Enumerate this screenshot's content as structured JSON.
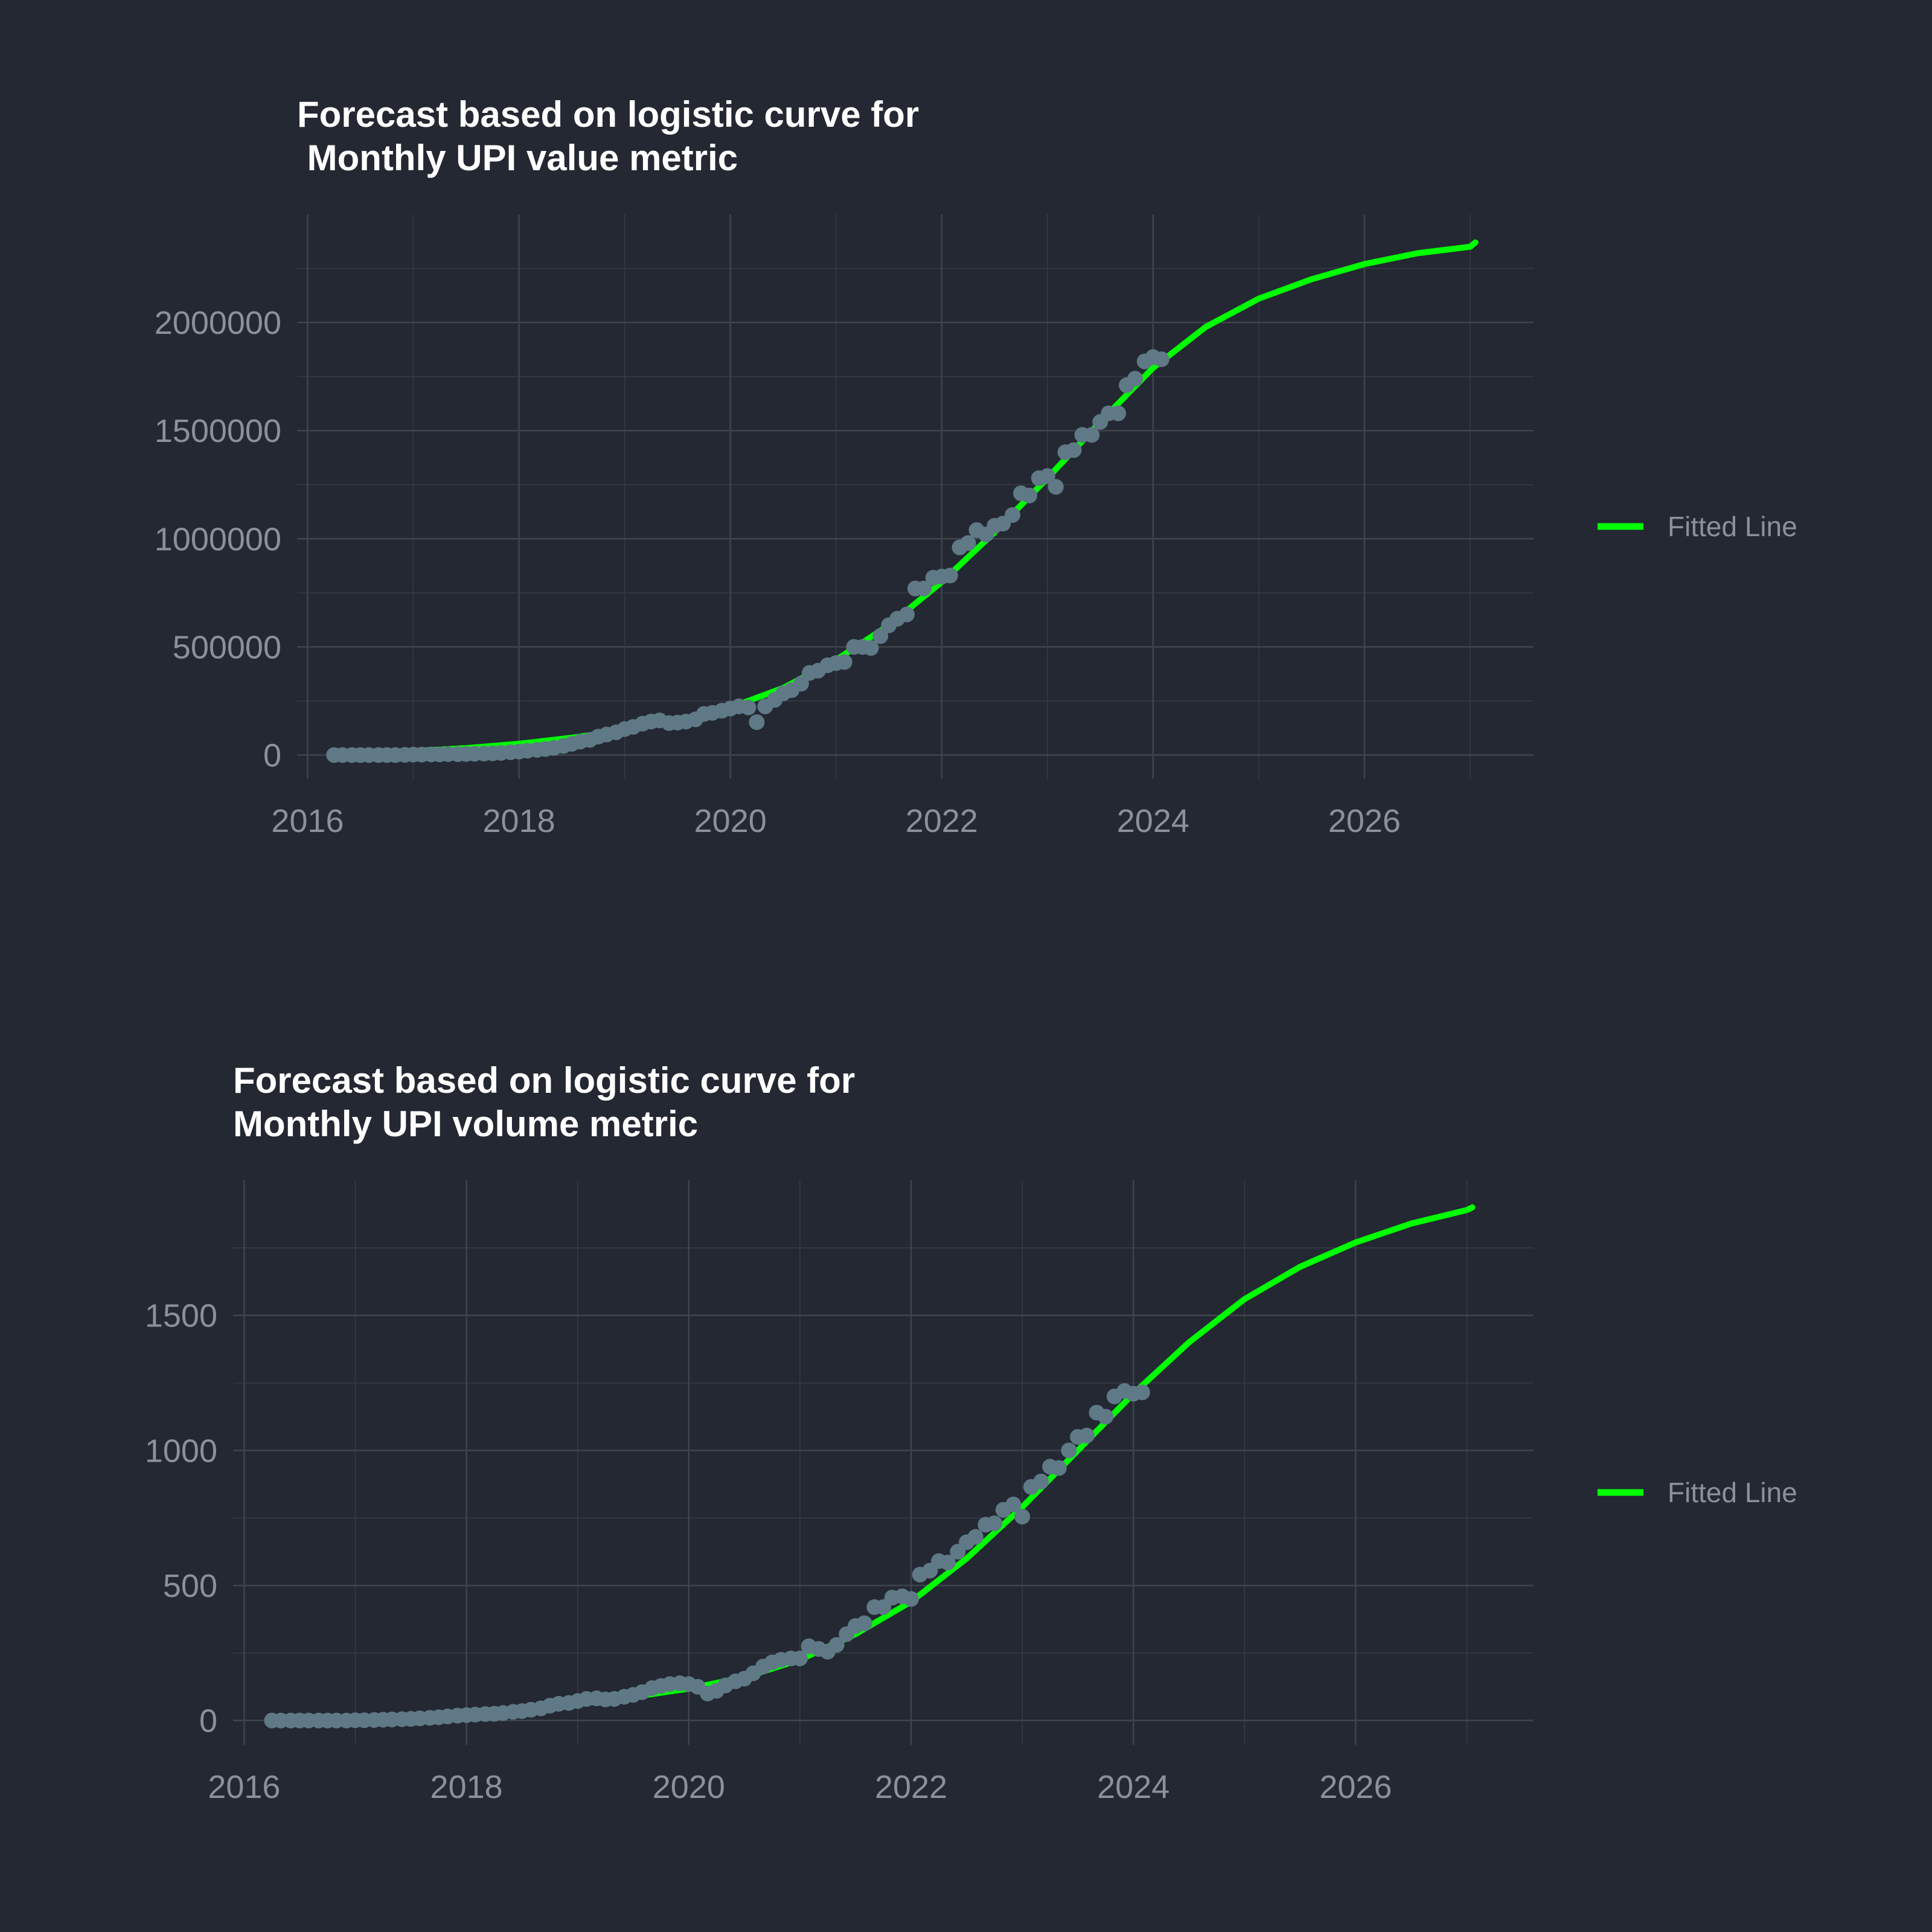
{
  "colors": {
    "background": "#232832",
    "fitted_line": "#00ff00",
    "points": "#5f7a86",
    "grid_major": "#3e434c",
    "grid_minor": "#353a43",
    "text": "#8c9199",
    "title": "#ffffff"
  },
  "chart_data": [
    {
      "type": "scatter",
      "title_lines": [
        "Forecast based on logistic curve for",
        " Monthly UPI value metric"
      ],
      "xlabel": "",
      "ylabel": "",
      "xlim": [
        2015.9,
        2027.6
      ],
      "ylim": [
        -110000,
        2500000
      ],
      "x_ticks": [
        2016,
        2018,
        2020,
        2022,
        2024,
        2026
      ],
      "x_tick_labels": [
        "2016",
        "2018",
        "2020",
        "2022",
        "2024",
        "2026"
      ],
      "y_ticks": [
        0,
        500000,
        1000000,
        1500000,
        2000000
      ],
      "y_tick_labels": [
        "0",
        "500000",
        "1000000",
        "1500000",
        "2000000"
      ],
      "grid": true,
      "legend": {
        "position": "right",
        "entries": [
          "Fitted Line"
        ]
      },
      "fitted_line": {
        "name": "Fitted Line",
        "x": [
          2016.25,
          2016.5,
          2017,
          2017.5,
          2018,
          2018.5,
          2019,
          2019.5,
          2020,
          2020.5,
          2021,
          2021.5,
          2022,
          2022.5,
          2023,
          2023.5,
          2024,
          2024.5,
          2025,
          2025.5,
          2026,
          2026.5,
          2027,
          2027.05
        ],
        "y": [
          5000,
          8000,
          18000,
          32000,
          52000,
          80000,
          115000,
          160000,
          220000,
          310000,
          440000,
          600000,
          800000,
          1030000,
          1280000,
          1540000,
          1790000,
          1980000,
          2110000,
          2200000,
          2270000,
          2320000,
          2350000,
          2370000
        ]
      },
      "points": {
        "x": [
          2016.25,
          2016.33,
          2016.42,
          2016.5,
          2016.58,
          2016.67,
          2016.75,
          2016.83,
          2016.92,
          2017.0,
          2017.08,
          2017.17,
          2017.25,
          2017.33,
          2017.42,
          2017.5,
          2017.58,
          2017.67,
          2017.75,
          2017.83,
          2017.92,
          2018.0,
          2018.08,
          2018.17,
          2018.25,
          2018.33,
          2018.42,
          2018.5,
          2018.58,
          2018.67,
          2018.75,
          2018.83,
          2018.92,
          2019.0,
          2019.08,
          2019.17,
          2019.25,
          2019.33,
          2019.42,
          2019.5,
          2019.58,
          2019.67,
          2019.75,
          2019.83,
          2019.92,
          2020.0,
          2020.08,
          2020.17,
          2020.25,
          2020.33,
          2020.42,
          2020.5,
          2020.58,
          2020.67,
          2020.75,
          2020.83,
          2020.92,
          2021.0,
          2021.08,
          2021.17,
          2021.25,
          2021.33,
          2021.42,
          2021.5,
          2021.58,
          2021.67,
          2021.75,
          2021.83,
          2021.92,
          2022.0,
          2022.08,
          2022.17,
          2022.25,
          2022.33,
          2022.42,
          2022.5,
          2022.58,
          2022.67,
          2022.75,
          2022.83,
          2022.92,
          2023.0,
          2023.08,
          2023.17,
          2023.25,
          2023.33,
          2023.42,
          2023.5,
          2023.58,
          2023.67,
          2023.75,
          2023.83,
          2023.92,
          2024.0,
          2024.08
        ],
        "y": [
          0,
          0,
          0,
          0,
          0,
          0,
          0,
          0,
          1000,
          2000,
          2000,
          3000,
          3000,
          4000,
          4000,
          5000,
          6000,
          7000,
          8000,
          10000,
          13000,
          16000,
          20000,
          24000,
          28000,
          33000,
          42000,
          52000,
          62000,
          70000,
          85000,
          95000,
          105000,
          120000,
          130000,
          145000,
          155000,
          160000,
          148000,
          150000,
          155000,
          165000,
          190000,
          195000,
          205000,
          215000,
          225000,
          220000,
          152000,
          225000,
          255000,
          285000,
          300000,
          330000,
          380000,
          390000,
          415000,
          425000,
          430000,
          500000,
          500000,
          495000,
          550000,
          600000,
          630000,
          650000,
          770000,
          770000,
          820000,
          825000,
          830000,
          960000,
          980000,
          1040000,
          1020000,
          1060000,
          1070000,
          1110000,
          1210000,
          1200000,
          1280000,
          1290000,
          1240000,
          1400000,
          1410000,
          1480000,
          1480000,
          1540000,
          1580000,
          1580000,
          1710000,
          1740000,
          1820000,
          1840000,
          1830000
        ]
      }
    },
    {
      "type": "scatter",
      "title_lines": [
        "Forecast based on logistic curve for",
        "Monthly UPI volume metric"
      ],
      "xlabel": "",
      "ylabel": "",
      "xlim": [
        2015.9,
        2027.6
      ],
      "ylim": [
        -90,
        2000
      ],
      "x_ticks": [
        2016,
        2018,
        2020,
        2022,
        2024,
        2026
      ],
      "x_tick_labels": [
        "2016",
        "2018",
        "2020",
        "2022",
        "2024",
        "2026"
      ],
      "y_ticks": [
        0,
        500,
        1000,
        1500
      ],
      "y_tick_labels": [
        "0",
        "500",
        "1000",
        "1500"
      ],
      "grid": true,
      "legend": {
        "position": "right",
        "entries": [
          "Fitted Line"
        ]
      },
      "fitted_line": {
        "name": "Fitted Line",
        "x": [
          2016.25,
          2016.5,
          2017,
          2017.5,
          2018,
          2018.5,
          2019,
          2019.5,
          2020,
          2020.5,
          2021,
          2021.5,
          2022,
          2022.5,
          2023,
          2023.5,
          2024,
          2024.5,
          2025,
          2025.5,
          2026,
          2026.5,
          2027,
          2027.05
        ],
        "y": [
          3,
          4,
          8,
          14,
          24,
          40,
          62,
          88,
          118,
          160,
          225,
          320,
          440,
          600,
          790,
          1000,
          1210,
          1400,
          1560,
          1680,
          1770,
          1840,
          1890,
          1900
        ]
      },
      "points": {
        "x": [
          2016.25,
          2016.33,
          2016.42,
          2016.5,
          2016.58,
          2016.67,
          2016.75,
          2016.83,
          2016.92,
          2017.0,
          2017.08,
          2017.17,
          2017.25,
          2017.33,
          2017.42,
          2017.5,
          2017.58,
          2017.67,
          2017.75,
          2017.83,
          2017.92,
          2018.0,
          2018.08,
          2018.17,
          2018.25,
          2018.33,
          2018.42,
          2018.5,
          2018.58,
          2018.67,
          2018.75,
          2018.83,
          2018.92,
          2019.0,
          2019.08,
          2019.17,
          2019.25,
          2019.33,
          2019.42,
          2019.5,
          2019.58,
          2019.67,
          2019.75,
          2019.83,
          2019.92,
          2020.0,
          2020.08,
          2020.17,
          2020.25,
          2020.33,
          2020.42,
          2020.5,
          2020.58,
          2020.67,
          2020.75,
          2020.83,
          2020.92,
          2021.0,
          2021.08,
          2021.17,
          2021.25,
          2021.33,
          2021.42,
          2021.5,
          2021.58,
          2021.67,
          2021.75,
          2021.83,
          2021.92,
          2022.0,
          2022.08,
          2022.17,
          2022.25,
          2022.33,
          2022.42,
          2022.5,
          2022.58,
          2022.67,
          2022.75,
          2022.83,
          2022.92,
          2023.0,
          2023.08,
          2023.17,
          2023.25,
          2023.33,
          2023.42,
          2023.5,
          2023.58,
          2023.67,
          2023.75,
          2023.83,
          2023.92,
          2024.0,
          2024.08
        ],
        "y": [
          0,
          0,
          0,
          0,
          0,
          0,
          0,
          0,
          0,
          1,
          1,
          2,
          3,
          4,
          5,
          6,
          8,
          10,
          12,
          15,
          18,
          20,
          22,
          24,
          25,
          28,
          32,
          35,
          40,
          45,
          55,
          62,
          65,
          72,
          80,
          82,
          78,
          80,
          88,
          95,
          105,
          120,
          128,
          135,
          138,
          135,
          125,
          100,
          110,
          130,
          145,
          155,
          175,
          200,
          215,
          225,
          230,
          230,
          275,
          265,
          255,
          280,
          320,
          350,
          360,
          420,
          420,
          455,
          460,
          450,
          540,
          555,
          590,
          585,
          625,
          660,
          680,
          725,
          730,
          780,
          800,
          755,
          865,
          885,
          940,
          935,
          1000,
          1050,
          1055,
          1140,
          1125,
          1200,
          1220,
          1210,
          1215
        ]
      }
    }
  ]
}
